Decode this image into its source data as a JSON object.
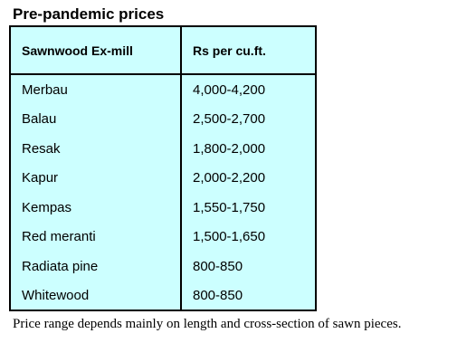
{
  "title": "Pre-pandemic prices",
  "table": {
    "headers": [
      "Sawnwood Ex-mill",
      "Rs per cu.ft."
    ],
    "rows": [
      [
        "Merbau",
        "4,000-4,200"
      ],
      [
        "Balau",
        "2,500-2,700"
      ],
      [
        "Resak",
        "1,800-2,000"
      ],
      [
        "Kapur",
        "2,000-2,200"
      ],
      [
        "Kempas",
        "1,550-1,750"
      ],
      [
        "Red meranti",
        "1,500-1,650"
      ],
      [
        "Radiata pine",
        "800-850"
      ],
      [
        "Whitewood",
        "800-850"
      ]
    ]
  },
  "note": "Price range depends mainly on length and cross-section of sawn pieces.",
  "colors": {
    "table_background": "#ccffff",
    "border": "#000000",
    "text": "#000000"
  }
}
